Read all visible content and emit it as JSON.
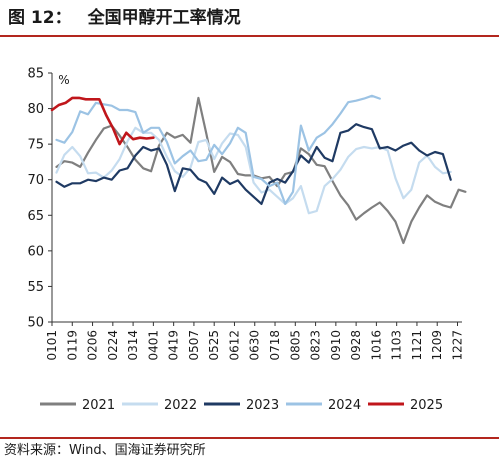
{
  "figure": {
    "label": "图 12：",
    "title": "全国甲醇开工率情况",
    "source": "资料来源：Wind、国海证券研究所"
  },
  "colors": {
    "rule": "#b3261e",
    "axis": "#333333",
    "text": "#1a1a1a"
  },
  "chart_data": {
    "type": "line",
    "title": "",
    "xlabel": "",
    "ylabel": "%",
    "ylim": [
      50,
      85
    ],
    "yticks": [
      50,
      55,
      60,
      65,
      70,
      75,
      80,
      85
    ],
    "grid": false,
    "legend_position": "bottom",
    "x_range": [
      1,
      365
    ],
    "x_ticks": [
      {
        "day": 1,
        "label": "0101"
      },
      {
        "day": 19,
        "label": "0119"
      },
      {
        "day": 37,
        "label": "0206"
      },
      {
        "day": 55,
        "label": "0224"
      },
      {
        "day": 73,
        "label": "0314"
      },
      {
        "day": 91,
        "label": "0401"
      },
      {
        "day": 109,
        "label": "0419"
      },
      {
        "day": 127,
        "label": "0507"
      },
      {
        "day": 145,
        "label": "0525"
      },
      {
        "day": 163,
        "label": "0612"
      },
      {
        "day": 181,
        "label": "0630"
      },
      {
        "day": 199,
        "label": "0718"
      },
      {
        "day": 217,
        "label": "0805"
      },
      {
        "day": 235,
        "label": "0823"
      },
      {
        "day": 253,
        "label": "0910"
      },
      {
        "day": 271,
        "label": "0928"
      },
      {
        "day": 289,
        "label": "1016"
      },
      {
        "day": 307,
        "label": "1103"
      },
      {
        "day": 325,
        "label": "1121"
      },
      {
        "day": 343,
        "label": "1209"
      },
      {
        "day": 361,
        "label": "1227"
      }
    ],
    "series": [
      {
        "name": "2021",
        "color": "#7f7f7f",
        "points": [
          [
            5,
            71.8
          ],
          [
            12,
            72.6
          ],
          [
            19,
            72.4
          ],
          [
            26,
            71.8
          ],
          [
            33,
            73.8
          ],
          [
            40,
            75.6
          ],
          [
            47,
            77.2
          ],
          [
            54,
            77.6
          ],
          [
            61,
            76.2
          ],
          [
            68,
            74.6
          ],
          [
            75,
            72.8
          ],
          [
            82,
            71.6
          ],
          [
            89,
            71.2
          ],
          [
            96,
            74.8
          ],
          [
            103,
            76.6
          ],
          [
            110,
            75.9
          ],
          [
            117,
            76.3
          ],
          [
            124,
            75.2
          ],
          [
            131,
            81.5
          ],
          [
            138,
            76.5
          ],
          [
            145,
            71.1
          ],
          [
            152,
            73.2
          ],
          [
            159,
            72.5
          ],
          [
            166,
            70.8
          ],
          [
            173,
            70.6
          ],
          [
            180,
            70.6
          ],
          [
            187,
            70.2
          ],
          [
            194,
            70.4
          ],
          [
            201,
            69.1
          ],
          [
            208,
            70.8
          ],
          [
            215,
            71.1
          ],
          [
            222,
            74.4
          ],
          [
            229,
            73.6
          ],
          [
            236,
            72.1
          ],
          [
            243,
            71.9
          ],
          [
            250,
            69.8
          ],
          [
            257,
            67.8
          ],
          [
            264,
            66.4
          ],
          [
            271,
            64.4
          ],
          [
            278,
            65.3
          ],
          [
            285,
            66.1
          ],
          [
            292,
            66.8
          ],
          [
            299,
            65.6
          ],
          [
            306,
            64.1
          ],
          [
            313,
            61.1
          ],
          [
            320,
            64.1
          ],
          [
            327,
            66.1
          ],
          [
            334,
            67.8
          ],
          [
            341,
            66.9
          ],
          [
            348,
            66.4
          ],
          [
            355,
            66.1
          ],
          [
            362,
            68.6
          ],
          [
            368,
            68.3
          ]
        ]
      },
      {
        "name": "2022",
        "color": "#c5dcef",
        "points": [
          [
            5,
            71.0
          ],
          [
            12,
            73.5
          ],
          [
            19,
            74.6
          ],
          [
            26,
            73.3
          ],
          [
            33,
            70.9
          ],
          [
            40,
            71.0
          ],
          [
            47,
            70.3
          ],
          [
            54,
            71.3
          ],
          [
            61,
            72.9
          ],
          [
            68,
            75.4
          ],
          [
            75,
            77.3
          ],
          [
            82,
            76.6
          ],
          [
            89,
            76.6
          ],
          [
            96,
            75.6
          ],
          [
            103,
            73.2
          ],
          [
            110,
            71.2
          ],
          [
            117,
            70.4
          ],
          [
            124,
            71.7
          ],
          [
            131,
            75.3
          ],
          [
            138,
            75.6
          ],
          [
            145,
            72.9
          ],
          [
            152,
            75.1
          ],
          [
            159,
            76.5
          ],
          [
            166,
            76.3
          ],
          [
            173,
            74.6
          ],
          [
            180,
            69.6
          ],
          [
            187,
            68.2
          ],
          [
            194,
            68.6
          ],
          [
            201,
            67.6
          ],
          [
            208,
            66.6
          ],
          [
            215,
            67.4
          ],
          [
            222,
            69.1
          ],
          [
            229,
            65.3
          ],
          [
            236,
            65.6
          ],
          [
            243,
            69.1
          ],
          [
            250,
            70.1
          ],
          [
            257,
            71.4
          ],
          [
            264,
            73.2
          ],
          [
            271,
            74.3
          ],
          [
            278,
            74.6
          ],
          [
            285,
            74.4
          ],
          [
            292,
            74.6
          ],
          [
            299,
            74.1
          ],
          [
            306,
            70.2
          ],
          [
            313,
            67.4
          ],
          [
            320,
            68.6
          ],
          [
            327,
            72.4
          ],
          [
            334,
            73.4
          ],
          [
            341,
            71.8
          ],
          [
            348,
            70.9
          ],
          [
            355,
            71.1
          ]
        ]
      },
      {
        "name": "2023",
        "color": "#1f3a63",
        "points": [
          [
            5,
            69.7
          ],
          [
            12,
            69.0
          ],
          [
            19,
            69.5
          ],
          [
            26,
            69.5
          ],
          [
            33,
            70.0
          ],
          [
            40,
            69.8
          ],
          [
            47,
            70.3
          ],
          [
            54,
            70.0
          ],
          [
            61,
            71.3
          ],
          [
            68,
            71.6
          ],
          [
            75,
            73.4
          ],
          [
            82,
            74.6
          ],
          [
            89,
            74.1
          ],
          [
            96,
            74.4
          ],
          [
            103,
            72.1
          ],
          [
            110,
            68.4
          ],
          [
            117,
            71.6
          ],
          [
            124,
            71.4
          ],
          [
            131,
            70.1
          ],
          [
            138,
            69.6
          ],
          [
            145,
            68.0
          ],
          [
            152,
            70.3
          ],
          [
            159,
            69.4
          ],
          [
            166,
            69.9
          ],
          [
            173,
            68.6
          ],
          [
            180,
            67.6
          ],
          [
            187,
            66.6
          ],
          [
            194,
            69.6
          ],
          [
            201,
            70.1
          ],
          [
            208,
            69.6
          ],
          [
            215,
            71.2
          ],
          [
            222,
            73.4
          ],
          [
            229,
            72.4
          ],
          [
            236,
            74.6
          ],
          [
            243,
            73.1
          ],
          [
            250,
            72.6
          ],
          [
            257,
            76.6
          ],
          [
            264,
            76.9
          ],
          [
            271,
            77.8
          ],
          [
            278,
            77.4
          ],
          [
            285,
            77.1
          ],
          [
            292,
            74.4
          ],
          [
            299,
            74.6
          ],
          [
            306,
            74.1
          ],
          [
            313,
            74.8
          ],
          [
            320,
            75.2
          ],
          [
            327,
            74.1
          ],
          [
            334,
            73.4
          ],
          [
            341,
            73.9
          ],
          [
            348,
            73.6
          ],
          [
            355,
            70.0
          ]
        ]
      },
      {
        "name": "2024",
        "color": "#9cc3e4",
        "points": [
          [
            5,
            75.6
          ],
          [
            12,
            75.2
          ],
          [
            19,
            76.7
          ],
          [
            26,
            79.6
          ],
          [
            33,
            79.2
          ],
          [
            40,
            80.8
          ],
          [
            47,
            80.6
          ],
          [
            54,
            80.4
          ],
          [
            61,
            79.8
          ],
          [
            68,
            79.8
          ],
          [
            75,
            79.5
          ],
          [
            82,
            76.6
          ],
          [
            89,
            77.3
          ],
          [
            96,
            77.3
          ],
          [
            103,
            75.3
          ],
          [
            110,
            72.3
          ],
          [
            117,
            73.3
          ],
          [
            124,
            74.1
          ],
          [
            131,
            72.6
          ],
          [
            138,
            72.8
          ],
          [
            145,
            74.9
          ],
          [
            152,
            73.6
          ],
          [
            159,
            75.1
          ],
          [
            166,
            77.3
          ],
          [
            173,
            76.6
          ],
          [
            180,
            70.4
          ],
          [
            187,
            70.1
          ],
          [
            194,
            69.1
          ],
          [
            201,
            69.6
          ],
          [
            208,
            66.6
          ],
          [
            215,
            68.3
          ],
          [
            222,
            77.6
          ],
          [
            229,
            74.1
          ],
          [
            236,
            75.9
          ],
          [
            243,
            76.6
          ],
          [
            250,
            77.8
          ],
          [
            257,
            79.3
          ],
          [
            264,
            80.9
          ],
          [
            271,
            81.1
          ],
          [
            278,
            81.4
          ],
          [
            285,
            81.8
          ],
          [
            292,
            81.4
          ]
        ]
      },
      {
        "name": "2025",
        "color": "#c0161b",
        "points": [
          [
            1,
            79.8
          ],
          [
            7,
            80.5
          ],
          [
            13,
            80.8
          ],
          [
            19,
            81.5
          ],
          [
            25,
            81.5
          ],
          [
            31,
            81.3
          ],
          [
            37,
            81.3
          ],
          [
            43,
            81.3
          ],
          [
            49,
            79.1
          ],
          [
            55,
            77.3
          ],
          [
            61,
            75.0
          ],
          [
            67,
            76.6
          ],
          [
            73,
            75.7
          ],
          [
            79,
            75.9
          ],
          [
            85,
            75.8
          ],
          [
            91,
            75.9
          ]
        ]
      }
    ]
  }
}
